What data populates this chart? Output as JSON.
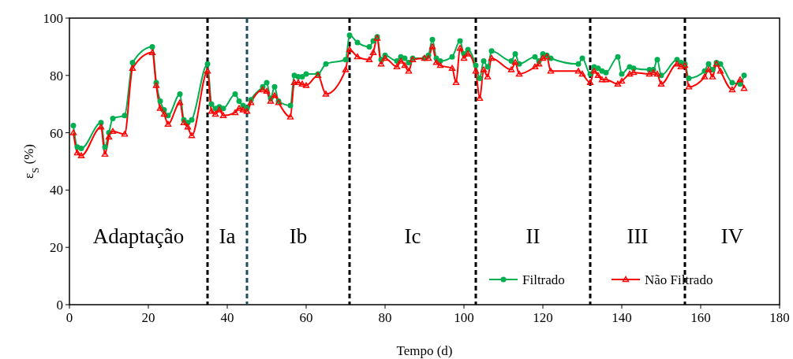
{
  "chart_data": {
    "type": "line",
    "xlabel": "Tempo (d)",
    "ylabel": "ε$_{S}$ (%)",
    "xlim": [
      0,
      180
    ],
    "xticks": [
      0,
      20,
      40,
      60,
      80,
      100,
      120,
      140,
      160,
      180
    ],
    "ylim": [
      0,
      100
    ],
    "yticks": [
      0,
      20,
      40,
      60,
      80,
      100
    ],
    "legend": "bottom right",
    "grid": false,
    "line_style": "solid",
    "series": [
      {
        "name": "Filtrado",
        "color": "#00b050",
        "marker": "circle",
        "x": [
          1,
          2,
          3,
          8,
          9,
          10,
          11,
          14,
          16,
          21,
          22,
          23,
          24,
          25,
          28,
          29,
          30,
          31,
          35,
          36,
          37,
          38,
          39,
          42,
          43,
          44,
          45,
          46,
          49,
          50,
          51,
          52,
          53,
          56,
          57,
          58,
          59,
          60,
          63,
          65,
          70,
          71,
          73,
          76,
          77,
          78,
          79,
          80,
          83,
          84,
          85,
          86,
          87,
          90,
          91,
          92,
          93,
          94,
          97,
          99,
          100,
          101,
          103,
          104,
          105,
          106,
          107,
          112,
          113,
          114,
          118,
          119,
          120,
          121,
          122,
          129,
          130,
          132,
          133,
          134,
          135,
          136,
          139,
          140,
          142,
          143,
          147,
          148,
          149,
          150,
          154,
          155,
          156,
          157,
          161,
          162,
          163,
          164,
          165,
          168,
          170,
          171
        ],
        "values": [
          62.5,
          55,
          54.5,
          63.5,
          55,
          60,
          65,
          66,
          84.5,
          90,
          77.5,
          71,
          68,
          66,
          73.5,
          64.5,
          63.5,
          64.5,
          84,
          70,
          68.5,
          69,
          68.5,
          73.5,
          71,
          69.5,
          68.5,
          71.5,
          76,
          77.5,
          72,
          76,
          71,
          69.5,
          80,
          79.5,
          79.5,
          80.5,
          80.5,
          84,
          85.5,
          94,
          91.5,
          90,
          92,
          93.5,
          85.5,
          87,
          85,
          86.5,
          86,
          84.5,
          86,
          86,
          87,
          92.5,
          86,
          85,
          86.5,
          92,
          87.5,
          89,
          83.5,
          79,
          85,
          83,
          88.5,
          85,
          87.5,
          84,
          86.5,
          85,
          87.5,
          87,
          86,
          84,
          86,
          80.5,
          83,
          82.5,
          81.5,
          81,
          86.5,
          80.5,
          83,
          82.5,
          82,
          82,
          85.5,
          80,
          85.5,
          84.5,
          84,
          79,
          81.5,
          84,
          82,
          84.5,
          84,
          77.5,
          77,
          80
        ]
      },
      {
        "name": "Não Filtrado",
        "color": "#ff0000",
        "marker": "triangle",
        "x": [
          1,
          2,
          3,
          8,
          9,
          10,
          11,
          14,
          16,
          21,
          22,
          23,
          24,
          25,
          28,
          29,
          30,
          31,
          35,
          36,
          37,
          38,
          39,
          42,
          43,
          44,
          45,
          46,
          49,
          50,
          51,
          52,
          53,
          56,
          57,
          58,
          59,
          60,
          63,
          65,
          70,
          71,
          73,
          76,
          77,
          78,
          79,
          80,
          83,
          84,
          85,
          86,
          87,
          90,
          91,
          92,
          93,
          94,
          97,
          98,
          99,
          100,
          101,
          103,
          104,
          105,
          106,
          107,
          112,
          113,
          114,
          118,
          119,
          120,
          121,
          122,
          129,
          130,
          132,
          133,
          134,
          135,
          136,
          139,
          140,
          142,
          143,
          147,
          148,
          149,
          150,
          154,
          155,
          156,
          157,
          161,
          162,
          163,
          164,
          165,
          168,
          170,
          171
        ],
        "values": [
          60,
          53,
          52,
          62,
          52.5,
          58.5,
          60.5,
          59.5,
          82.5,
          88,
          76.5,
          68.5,
          66.5,
          63,
          70.5,
          63.5,
          62,
          59,
          81.5,
          67.5,
          66.5,
          68,
          66,
          67,
          68.5,
          68,
          67.5,
          70.5,
          75,
          74.5,
          71,
          73,
          70.5,
          65.5,
          77.5,
          77.5,
          77,
          76.5,
          80,
          73.5,
          82,
          89,
          86.5,
          85.5,
          88,
          93,
          84,
          86,
          83,
          85,
          83.5,
          81.5,
          85.5,
          86,
          86,
          90,
          84.5,
          83.5,
          82.5,
          77.5,
          89.5,
          86,
          87.5,
          81.5,
          72,
          82,
          79.5,
          86,
          82,
          84.5,
          80.5,
          83,
          84,
          86,
          86.5,
          81.5,
          81.5,
          80.5,
          77.5,
          81.5,
          80,
          78.5,
          78.5,
          77,
          78,
          80.5,
          81,
          80.5,
          81,
          80.5,
          77,
          84,
          83,
          83.5,
          76,
          79.5,
          82,
          79.5,
          84,
          81.5,
          75,
          78.5,
          75.5
        ]
      }
    ],
    "ref_lines": [
      {
        "axis": "x",
        "value": 35,
        "color": "#000000",
        "line_style": "dashed"
      },
      {
        "axis": "x",
        "value": 45,
        "color": "#1f4e5f",
        "line_style": "dashed"
      },
      {
        "axis": "x",
        "value": 71,
        "color": "#000000",
        "line_style": "dashed"
      },
      {
        "axis": "x",
        "value": 103,
        "color": "#000000",
        "line_style": "dashed"
      },
      {
        "axis": "x",
        "value": 132,
        "color": "#000000",
        "line_style": "dashed"
      },
      {
        "axis": "x",
        "value": 156,
        "color": "#000000",
        "line_style": "dashed"
      }
    ],
    "annotations": [
      "Adaptação",
      "Ia",
      "Ib",
      "Ic",
      "II",
      "III",
      "IV"
    ]
  }
}
